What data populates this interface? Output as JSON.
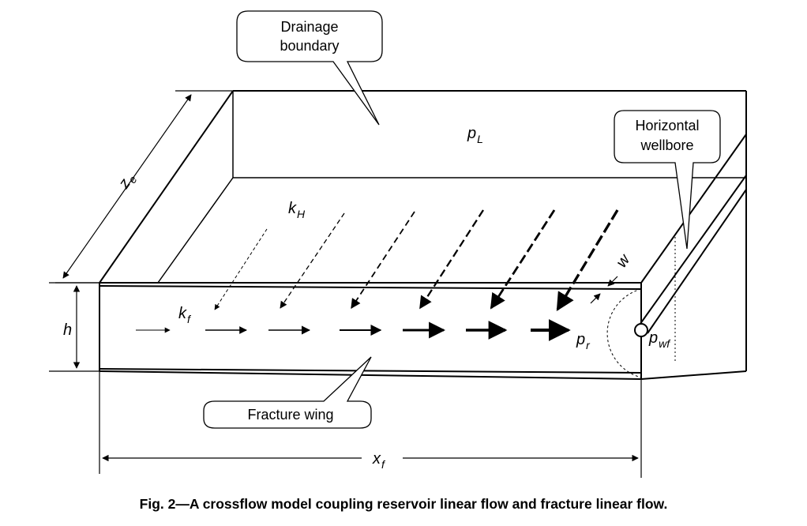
{
  "callouts": {
    "drainage_line1": "Drainage",
    "drainage_line2": "boundary",
    "wellbore_line1": "Horizontal",
    "wellbore_line2": "wellbore",
    "fracture_wing": "Fracture wing"
  },
  "symbols": {
    "pL_base": "p",
    "pL_sub": "L",
    "ze_base": "z",
    "ze_sub": "e",
    "kH_base": "k",
    "kH_sub": "H",
    "kf_base": "k",
    "kf_sub": "f",
    "h": "h",
    "w": "w",
    "pr_base": "p",
    "pr_sub": "r",
    "pwf_base": "p",
    "pwf_sub": "wf",
    "xf_base": "x",
    "xf_sub": "f"
  },
  "caption": "Fig. 2—A crossflow model coupling reservoir linear flow and fracture linear flow."
}
